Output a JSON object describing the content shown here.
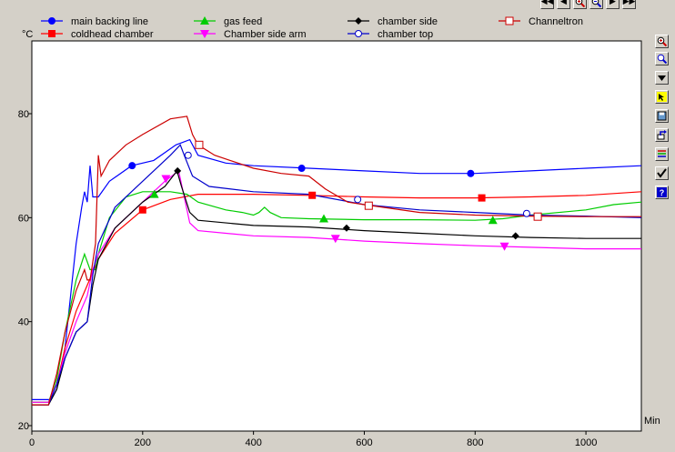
{
  "toolbar": {
    "nav_buttons": [
      {
        "name": "first-page-icon",
        "glyph": "◀◀"
      },
      {
        "name": "prev-page-icon",
        "glyph": "◀"
      },
      {
        "name": "zoom-in-icon",
        "glyph": "zoom-in"
      },
      {
        "name": "zoom-out-icon",
        "glyph": "zoom-out"
      },
      {
        "name": "next-page-icon",
        "glyph": "▶"
      },
      {
        "name": "last-page-icon",
        "glyph": "▶▶"
      }
    ],
    "side_buttons": [
      {
        "name": "zoom-in-icon",
        "glyph": "zoom-in"
      },
      {
        "name": "zoom-fit-icon",
        "glyph": "zoom"
      },
      {
        "name": "dropdown-arrow-icon",
        "glyph": "arrow-down"
      },
      {
        "name": "cursor-icon",
        "glyph": "cursor"
      },
      {
        "name": "save-icon",
        "glyph": "save"
      },
      {
        "name": "export-icon",
        "glyph": "export"
      },
      {
        "name": "color-lines-icon",
        "glyph": "lines"
      },
      {
        "name": "checkmark-icon",
        "glyph": "check"
      },
      {
        "name": "help-icon",
        "glyph": "?"
      }
    ]
  },
  "chart_data": {
    "type": "line",
    "title": "",
    "xlabel": "Min",
    "ylabel": "°C",
    "xlim": [
      0,
      1100
    ],
    "ylim": [
      20,
      95
    ],
    "x_ticks": [
      0,
      200,
      400,
      600,
      800,
      1000
    ],
    "y_ticks": [
      20,
      40,
      60,
      80
    ],
    "grid": false,
    "legend_position": "top",
    "series": [
      {
        "name": "main backing line",
        "color": "#0000ff",
        "marker": "circle-filled",
        "points": [
          [
            0,
            25
          ],
          [
            35,
            25
          ],
          [
            45,
            27
          ],
          [
            60,
            35
          ],
          [
            70,
            45
          ],
          [
            80,
            55
          ],
          [
            90,
            62
          ],
          [
            95,
            65
          ],
          [
            100,
            63
          ],
          [
            105,
            70
          ],
          [
            110,
            64
          ],
          [
            120,
            64
          ],
          [
            140,
            67
          ],
          [
            180,
            70
          ],
          [
            220,
            71
          ],
          [
            260,
            74
          ],
          [
            285,
            75
          ],
          [
            300,
            72
          ],
          [
            350,
            70.5
          ],
          [
            400,
            70
          ],
          [
            500,
            69.5
          ],
          [
            600,
            69
          ],
          [
            700,
            68.5
          ],
          [
            800,
            68.5
          ],
          [
            900,
            69
          ],
          [
            1000,
            69.5
          ],
          [
            1100,
            70
          ]
        ],
        "markers": [
          [
            181,
            70
          ],
          [
            487,
            69.5
          ],
          [
            792,
            68.5
          ]
        ]
      },
      {
        "name": "coldhead chamber",
        "color": "#ff0000",
        "marker": "square-filled",
        "points": [
          [
            0,
            24.5
          ],
          [
            30,
            24.5
          ],
          [
            45,
            28
          ],
          [
            60,
            35
          ],
          [
            80,
            42
          ],
          [
            100,
            47
          ],
          [
            120,
            52
          ],
          [
            150,
            57
          ],
          [
            200,
            61.5
          ],
          [
            250,
            63.5
          ],
          [
            300,
            64.5
          ],
          [
            400,
            64.5
          ],
          [
            500,
            64.3
          ],
          [
            600,
            64
          ],
          [
            700,
            63.8
          ],
          [
            800,
            63.8
          ],
          [
            900,
            64
          ],
          [
            1000,
            64.3
          ],
          [
            1100,
            65
          ]
        ],
        "markers": [
          [
            200,
            61.5
          ],
          [
            506,
            64.3
          ],
          [
            812,
            63.8
          ]
        ]
      },
      {
        "name": "gas feed",
        "color": "#00cc00",
        "marker": "triangle-up",
        "points": [
          [
            0,
            24.5
          ],
          [
            30,
            24.5
          ],
          [
            45,
            29
          ],
          [
            60,
            38
          ],
          [
            80,
            48
          ],
          [
            95,
            53
          ],
          [
            105,
            50
          ],
          [
            115,
            50
          ],
          [
            120,
            53
          ],
          [
            140,
            60
          ],
          [
            170,
            64
          ],
          [
            200,
            65
          ],
          [
            250,
            65
          ],
          [
            280,
            64.5
          ],
          [
            300,
            63
          ],
          [
            350,
            61.5
          ],
          [
            380,
            61
          ],
          [
            400,
            60.5
          ],
          [
            410,
            61
          ],
          [
            420,
            62
          ],
          [
            430,
            61
          ],
          [
            450,
            60
          ],
          [
            500,
            59.8
          ],
          [
            600,
            59.6
          ],
          [
            700,
            59.6
          ],
          [
            800,
            59.5
          ],
          [
            850,
            59.8
          ],
          [
            900,
            60.5
          ],
          [
            1000,
            61.5
          ],
          [
            1050,
            62.5
          ],
          [
            1100,
            63
          ]
        ],
        "markers": [
          [
            221,
            64.5
          ],
          [
            527,
            59.8
          ],
          [
            832,
            59.5
          ]
        ]
      },
      {
        "name": "Chamber side arm",
        "color": "#ff00ff",
        "marker": "triangle-down",
        "points": [
          [
            0,
            24.5
          ],
          [
            30,
            24.5
          ],
          [
            45,
            28
          ],
          [
            60,
            34
          ],
          [
            80,
            40
          ],
          [
            100,
            45
          ],
          [
            110,
            50
          ],
          [
            120,
            53
          ],
          [
            150,
            58
          ],
          [
            200,
            63
          ],
          [
            240,
            67
          ],
          [
            265,
            69
          ],
          [
            275,
            64
          ],
          [
            285,
            59
          ],
          [
            300,
            57.5
          ],
          [
            400,
            56.5
          ],
          [
            500,
            56.2
          ],
          [
            600,
            55.5
          ],
          [
            700,
            55
          ],
          [
            800,
            54.6
          ],
          [
            900,
            54.3
          ],
          [
            1000,
            54
          ],
          [
            1100,
            54
          ]
        ],
        "markers": [
          [
            242,
            67.5
          ],
          [
            548,
            56
          ],
          [
            853,
            54.5
          ]
        ]
      },
      {
        "name": "chamber side",
        "color": "#000000",
        "marker": "diamond-filled",
        "points": [
          [
            0,
            24
          ],
          [
            30,
            24
          ],
          [
            45,
            27
          ],
          [
            60,
            33
          ],
          [
            80,
            38
          ],
          [
            100,
            40
          ],
          [
            110,
            47
          ],
          [
            120,
            52
          ],
          [
            150,
            58
          ],
          [
            200,
            63
          ],
          [
            240,
            66
          ],
          [
            262,
            69
          ],
          [
            270,
            66
          ],
          [
            285,
            61
          ],
          [
            300,
            59.5
          ],
          [
            400,
            58.5
          ],
          [
            500,
            58.2
          ],
          [
            600,
            57.5
          ],
          [
            700,
            57
          ],
          [
            800,
            56.5
          ],
          [
            900,
            56.2
          ],
          [
            1000,
            56
          ],
          [
            1100,
            56
          ]
        ],
        "markers": [
          [
            263,
            69
          ],
          [
            568,
            58
          ],
          [
            873,
            56.5
          ]
        ]
      },
      {
        "name": "chamber top",
        "color": "#0000cc",
        "marker": "circle-open",
        "points": [
          [
            0,
            24
          ],
          [
            30,
            24
          ],
          [
            45,
            28
          ],
          [
            60,
            33
          ],
          [
            80,
            38
          ],
          [
            100,
            40
          ],
          [
            110,
            49
          ],
          [
            120,
            55
          ],
          [
            150,
            62
          ],
          [
            200,
            67
          ],
          [
            250,
            72
          ],
          [
            268,
            74
          ],
          [
            275,
            72
          ],
          [
            290,
            68
          ],
          [
            320,
            66
          ],
          [
            400,
            65
          ],
          [
            500,
            64.5
          ],
          [
            600,
            62.5
          ],
          [
            700,
            61.5
          ],
          [
            800,
            61
          ],
          [
            900,
            60.5
          ],
          [
            1000,
            60.3
          ],
          [
            1100,
            60
          ]
        ],
        "markers": [
          [
            282,
            72
          ],
          [
            588,
            63.5
          ],
          [
            893,
            60.8
          ]
        ]
      },
      {
        "name": "Channeltron",
        "color": "#cc0000",
        "marker": "square-open",
        "points": [
          [
            0,
            24
          ],
          [
            30,
            24
          ],
          [
            45,
            30
          ],
          [
            60,
            38
          ],
          [
            80,
            46
          ],
          [
            95,
            50
          ],
          [
            100,
            48
          ],
          [
            105,
            48
          ],
          [
            115,
            55
          ],
          [
            120,
            72
          ],
          [
            125,
            68
          ],
          [
            140,
            71
          ],
          [
            170,
            74
          ],
          [
            200,
            76
          ],
          [
            250,
            79
          ],
          [
            280,
            79.5
          ],
          [
            290,
            76
          ],
          [
            300,
            74
          ],
          [
            330,
            72
          ],
          [
            400,
            69.5
          ],
          [
            450,
            68.5
          ],
          [
            500,
            68
          ],
          [
            530,
            65.5
          ],
          [
            570,
            63
          ],
          [
            600,
            62.5
          ],
          [
            700,
            61
          ],
          [
            800,
            60.5
          ],
          [
            900,
            60.3
          ],
          [
            1000,
            60.2
          ],
          [
            1100,
            60.2
          ]
        ],
        "markers": [
          [
            302,
            74
          ],
          [
            608,
            62.3
          ],
          [
            913,
            60.2
          ]
        ]
      }
    ]
  }
}
